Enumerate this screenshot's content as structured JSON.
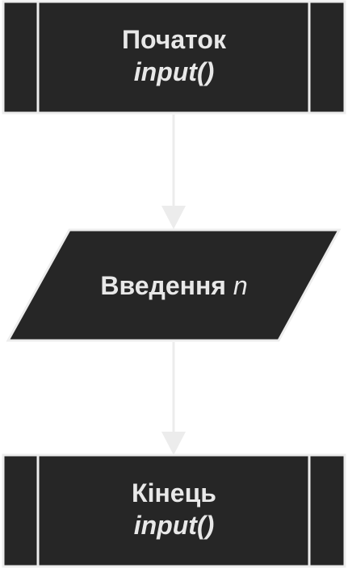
{
  "colors": {
    "node_fill": "#262626",
    "node_stroke": "#ededed",
    "node_text": "#e8e8e8",
    "edge": "#ececec"
  },
  "nodes": {
    "start": {
      "shape": "subroutine",
      "title": "Початок",
      "subtitle": "input()"
    },
    "input": {
      "shape": "parallelogram",
      "title": "Введення",
      "variable": "n"
    },
    "end": {
      "shape": "subroutine",
      "title": "Кінець",
      "subtitle": "input()"
    }
  },
  "edges": [
    {
      "from": "start",
      "to": "input"
    },
    {
      "from": "input",
      "to": "end"
    }
  ]
}
